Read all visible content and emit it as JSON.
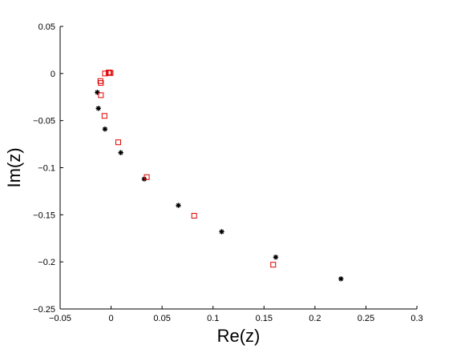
{
  "chart_data": {
    "type": "scatter",
    "title": "",
    "xlabel": "Re(z)",
    "ylabel": "Im(z)",
    "xlim": [
      -0.05,
      0.3
    ],
    "ylim": [
      -0.25,
      0.05
    ],
    "xticks": [
      -0.05,
      0,
      0.05,
      0.1,
      0.15,
      0.2,
      0.25,
      0.3
    ],
    "xtick_labels": [
      "−0.05",
      "0",
      "0.05",
      "0.1",
      "0.15",
      "0.2",
      "0.25",
      "0.3"
    ],
    "yticks": [
      0.05,
      0,
      -0.05,
      -0.1,
      -0.15,
      -0.2,
      -0.25
    ],
    "ytick_labels": [
      "0.05",
      "0",
      "−0.05",
      "−0.1",
      "−0.15",
      "−0.2",
      "−0.25"
    ],
    "grid": false,
    "legend": "none",
    "series": [
      {
        "marker": "star",
        "color": "#000000",
        "points": [
          {
            "x": -0.0135,
            "y": -0.02
          },
          {
            "x": -0.0125,
            "y": -0.037
          },
          {
            "x": -0.006,
            "y": -0.059
          },
          {
            "x": 0.0095,
            "y": -0.084
          },
          {
            "x": 0.0325,
            "y": -0.112
          },
          {
            "x": 0.066,
            "y": -0.14
          },
          {
            "x": 0.1085,
            "y": -0.168
          },
          {
            "x": 0.1615,
            "y": -0.195
          },
          {
            "x": 0.2255,
            "y": -0.218
          }
        ]
      },
      {
        "marker": "square",
        "color": "#e00000",
        "points": [
          {
            "x": -0.0005,
            "y": 0.0005
          },
          {
            "x": -0.0015,
            "y": 0.001
          },
          {
            "x": -0.0025,
            "y": 0.001
          },
          {
            "x": -0.006,
            "y": 0.0
          },
          {
            "x": -0.0105,
            "y": -0.008
          },
          {
            "x": -0.01,
            "y": -0.01
          },
          {
            "x": -0.01,
            "y": -0.023
          },
          {
            "x": -0.0065,
            "y": -0.045
          },
          {
            "x": 0.007,
            "y": -0.073
          },
          {
            "x": 0.035,
            "y": -0.11
          },
          {
            "x": 0.0815,
            "y": -0.151
          },
          {
            "x": 0.159,
            "y": -0.203
          }
        ]
      }
    ]
  }
}
